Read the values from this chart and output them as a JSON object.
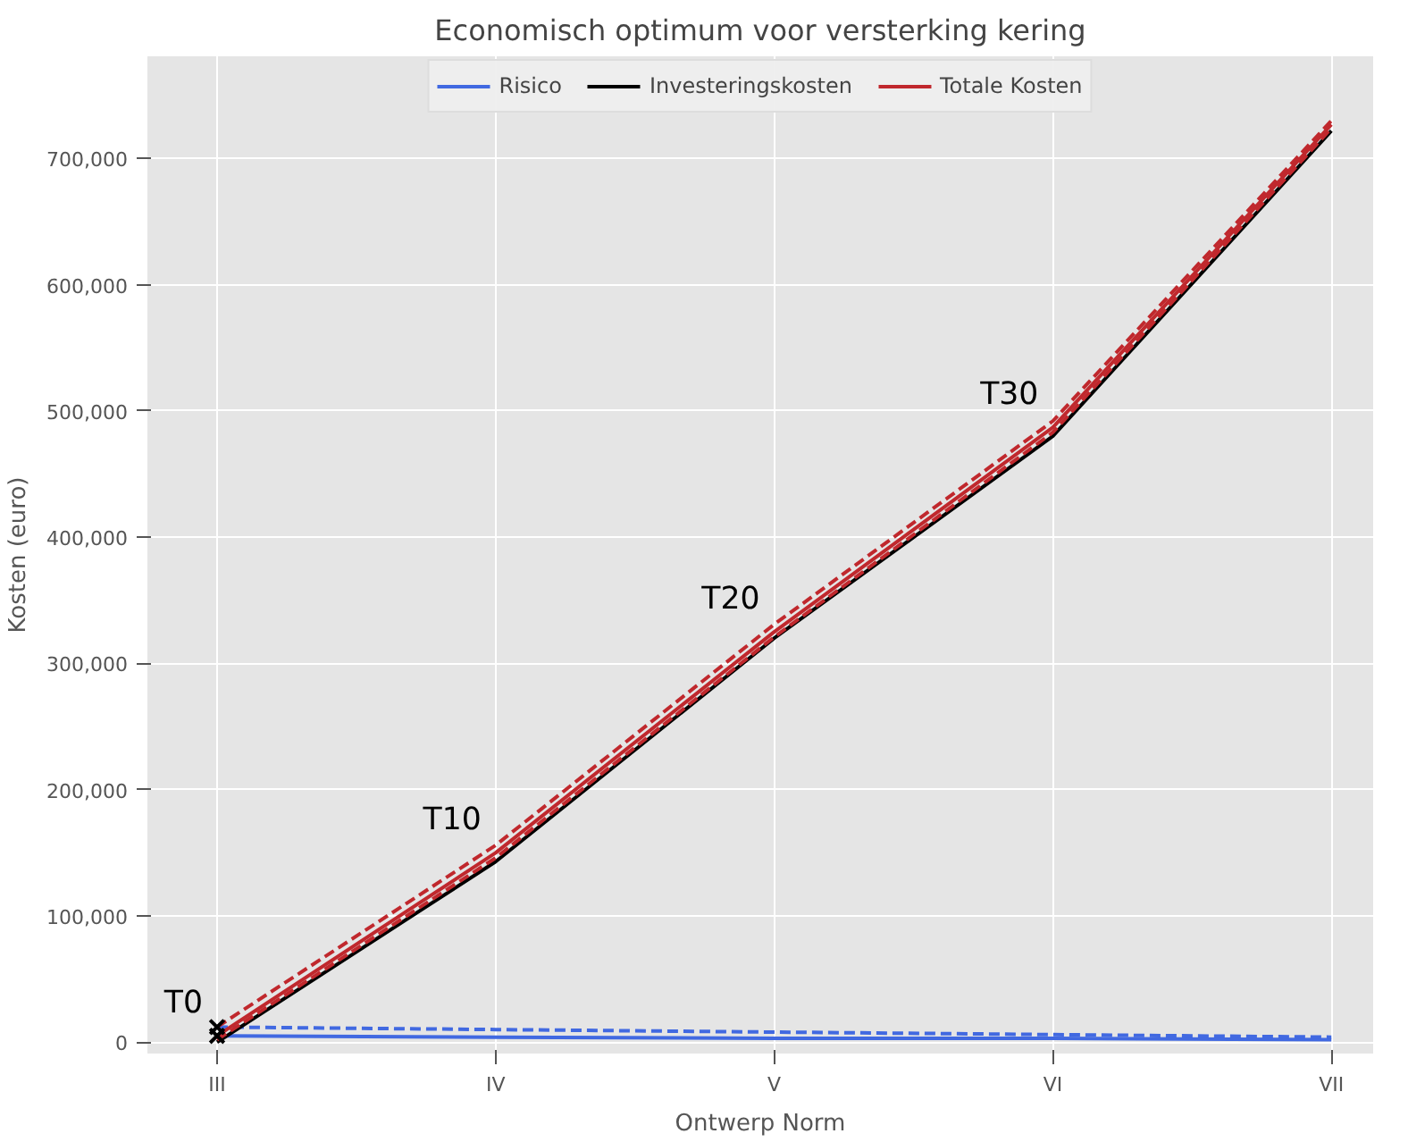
{
  "chart_data": {
    "type": "line",
    "title": "Economisch optimum voor versterking kering",
    "xlabel": "Ontwerp Norm",
    "ylabel": "Kosten (euro)",
    "categories": [
      "III",
      "IV",
      "V",
      "VI",
      "VII"
    ],
    "ylim": [
      -9000,
      781000
    ],
    "yticks": [
      {
        "value": 0,
        "label": "0"
      },
      {
        "value": 100000,
        "label": "100,000"
      },
      {
        "value": 200000,
        "label": "200,000"
      },
      {
        "value": 300000,
        "label": "300,000"
      },
      {
        "value": 400000,
        "label": "400,000"
      },
      {
        "value": 500000,
        "label": "500,000"
      },
      {
        "value": 600000,
        "label": "600,000"
      },
      {
        "value": 700000,
        "label": "700,000"
      }
    ],
    "grid": true,
    "legend": "top",
    "series": [
      {
        "name": "Risico",
        "color": "#4169e1",
        "values": [
          5000,
          4000,
          3000,
          3000,
          2000
        ],
        "line_style": "solid"
      },
      {
        "color": "#4169e1",
        "values": [
          12000,
          10000,
          8000,
          6000,
          4000
        ],
        "line_style": "dashed"
      },
      {
        "name": "Investeringskosten",
        "color": "#000000",
        "values": [
          0,
          143000,
          320000,
          480000,
          722000
        ],
        "line_style": "solid"
      },
      {
        "name": "Totale Kosten",
        "color": "#c0282d",
        "values": [
          5000,
          150000,
          325000,
          487000,
          727000
        ],
        "line_style": "solid"
      },
      {
        "color": "#c0282d",
        "values": [
          12000,
          156000,
          331000,
          492000,
          730000
        ],
        "line_style": "dashed"
      },
      {
        "color": "#c0282d",
        "values": [
          2000,
          146000,
          321000,
          483000,
          724000
        ],
        "line_style": "dashed"
      },
      {
        "type": "scatter",
        "marker": "cross",
        "color": "#000000",
        "x": [
          "III",
          "III"
        ],
        "values": [
          12000,
          5000
        ]
      }
    ],
    "annotations": [
      {
        "text": "T0",
        "x": "III",
        "y": 5000
      },
      {
        "text": "T10",
        "x": "IV",
        "y": 150000
      },
      {
        "text": "T20",
        "x": "V",
        "y": 325000
      },
      {
        "text": "T30",
        "x": "VI",
        "y": 487000
      }
    ]
  }
}
